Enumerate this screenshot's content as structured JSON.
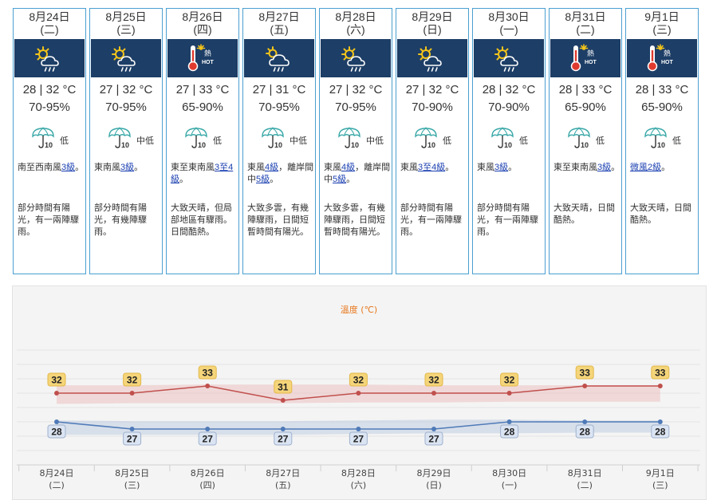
{
  "days": [
    {
      "date": "8月24日",
      "weekday": "(二)",
      "icon": "sunny-periods-showers-icon",
      "temp": "28 | 32 °C",
      "humidity": "70-95%",
      "uv_level": "低",
      "wind_pre": "南至西南風",
      "wind_link": "3級",
      "wind_post": "。",
      "desc": "部分時間有陽光，有一兩陣驟雨。"
    },
    {
      "date": "8月25日",
      "weekday": "(三)",
      "icon": "sunny-periods-showers-icon",
      "temp": "27 | 32 °C",
      "humidity": "70-95%",
      "uv_level": "中低",
      "wind_pre": "東南風",
      "wind_link": "3級",
      "wind_post": "。",
      "desc": "部分時間有陽光，有幾陣驟雨。"
    },
    {
      "date": "8月26日",
      "weekday": "(四)",
      "icon": "very-hot-icon",
      "temp": "27 | 33 °C",
      "humidity": "65-90%",
      "uv_level": "低",
      "wind_pre": "東至東南風",
      "wind_link": "3至4級",
      "wind_post": "。",
      "desc": "大致天晴，但局部地區有驟雨。日間酷熱。"
    },
    {
      "date": "8月27日",
      "weekday": "(五)",
      "icon": "mainly-cloudy-showers-icon",
      "temp": "27 | 31 °C",
      "humidity": "70-95%",
      "uv_level": "中低",
      "wind_pre": "東風",
      "wind_link": "4級",
      "wind_post": "，離岸間中",
      "wind_link2": "5級",
      "wind_post2": "。",
      "desc": "大致多雲，有幾陣驟雨，日間短暫時間有陽光。"
    },
    {
      "date": "8月28日",
      "weekday": "(六)",
      "icon": "sunny-periods-showers-icon",
      "temp": "27 | 32 °C",
      "humidity": "70-95%",
      "uv_level": "中低",
      "wind_pre": "東風",
      "wind_link": "4級",
      "wind_post": "，離岸間中",
      "wind_link2": "5級",
      "wind_post2": "。",
      "desc": "大致多雲，有幾陣驟雨，日間短暫時間有陽光。"
    },
    {
      "date": "8月29日",
      "weekday": "(日)",
      "icon": "sunny-periods-showers-icon",
      "temp": "27 | 32 °C",
      "humidity": "70-90%",
      "uv_level": "低",
      "wind_pre": "東風",
      "wind_link": "3至4級",
      "wind_post": "。",
      "desc": "部分時間有陽光，有一兩陣驟雨。"
    },
    {
      "date": "8月30日",
      "weekday": "(一)",
      "icon": "sunny-periods-showers-icon",
      "temp": "28 | 32 °C",
      "humidity": "70-90%",
      "uv_level": "低",
      "wind_pre": "東風",
      "wind_link": "3級",
      "wind_post": "。",
      "desc": "部分時間有陽光，有一兩陣驟雨。"
    },
    {
      "date": "8月31日",
      "weekday": "(二)",
      "icon": "very-hot-icon",
      "temp": "28 | 33 °C",
      "humidity": "65-90%",
      "uv_level": "低",
      "wind_pre": "東至東南風",
      "wind_link": "3級",
      "wind_post": "。",
      "desc": "大致天晴，日間酷熱。"
    },
    {
      "date": "9月1日",
      "weekday": "(三)",
      "icon": "very-hot-icon",
      "temp": "28 | 33 °C",
      "humidity": "65-90%",
      "uv_level": "低",
      "wind_pre": "",
      "wind_link": "微風2級",
      "wind_post": "。",
      "desc": "大致天晴，日間酷熱。"
    }
  ],
  "hot_label": "熱",
  "hot_label_en": "HOT",
  "uv_index_number": "10",
  "colors": {
    "card_border": "#4a9fd0",
    "icon_bg": "#1d3e66",
    "max_line": "#c0504d",
    "min_line": "#4f7ab8",
    "label_yellow": "#f5d57a",
    "label_blue": "#dbe4f2"
  },
  "chart_data": {
    "type": "line",
    "title": "溫度 (℃)",
    "categories": [
      "8月24日(二)",
      "8月25日(三)",
      "8月26日(四)",
      "8月27日(五)",
      "8月28日(六)",
      "8月29日(日)",
      "8月30日(一)",
      "8月31日(二)",
      "9月1日(三)"
    ],
    "category_dates": [
      "8月24日",
      "8月25日",
      "8月26日",
      "8月27日",
      "8月28日",
      "8月29日",
      "8月30日",
      "8月31日",
      "9月1日"
    ],
    "category_weekdays": [
      "(二)",
      "(三)",
      "(四)",
      "(五)",
      "(六)",
      "(日)",
      "(一)",
      "(二)",
      "(三)"
    ],
    "series": [
      {
        "values": [
          32,
          32,
          33,
          31,
          32,
          32,
          32,
          33,
          33
        ]
      },
      {
        "values": [
          28,
          27,
          27,
          27,
          27,
          27,
          28,
          28,
          28
        ]
      }
    ],
    "max_band": [
      [
        30.5,
        33.1
      ],
      [
        30.6,
        33.1
      ],
      [
        30.6,
        33.2
      ],
      [
        30.6,
        33.2
      ],
      [
        30.7,
        33.2
      ],
      [
        30.7,
        33.1
      ],
      [
        30.8,
        33.1
      ],
      [
        30.8,
        33.1
      ],
      [
        30.8,
        33.1
      ]
    ],
    "min_band": [
      [
        26.2,
        28.2
      ],
      [
        26.2,
        28.1
      ],
      [
        26.2,
        28.1
      ],
      [
        26.2,
        28.1
      ],
      [
        26.3,
        28.2
      ],
      [
        26.4,
        28.3
      ],
      [
        26.4,
        28.3
      ],
      [
        26.5,
        28.2
      ],
      [
        26.5,
        28.2
      ]
    ],
    "ylim": [
      22,
      40
    ],
    "grid": true
  }
}
